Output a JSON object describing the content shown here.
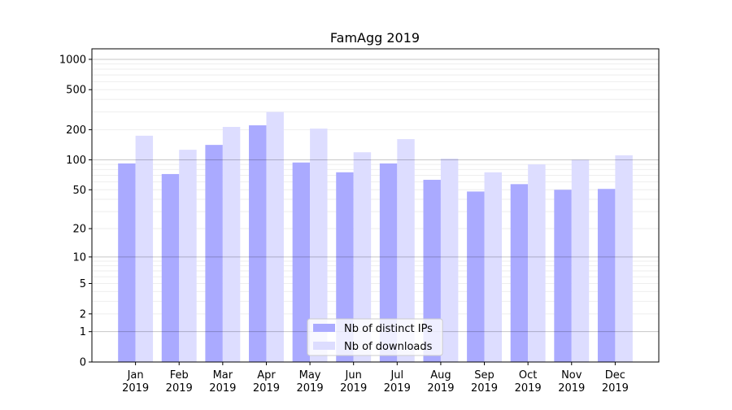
{
  "chart_data": {
    "type": "bar",
    "title": "FamAgg 2019",
    "xlabel": "",
    "ylabel": "",
    "yscale": "log(1+y)",
    "ylim": [
      0,
      1270
    ],
    "grid": "horizontal, major and minor",
    "legend_placement": "lower center",
    "categories": [
      "Jan\n2019",
      "Feb\n2019",
      "Mar\n2019",
      "Apr\n2019",
      "May\n2019",
      "Jun\n2019",
      "Jul\n2019",
      "Aug\n2019",
      "Sep\n2019",
      "Oct\n2019",
      "Nov\n2019",
      "Dec\n2019"
    ],
    "yticks": [
      0,
      1,
      2,
      5,
      10,
      20,
      50,
      100,
      200,
      500,
      1000
    ],
    "ytick_labels": [
      "0",
      "1",
      "2",
      "5",
      "10",
      "20",
      "50",
      "100",
      "200",
      "500",
      "1000"
    ],
    "series": [
      {
        "name": "Nb of distinct IPs",
        "color": "#aaaaff",
        "values": [
          92,
          72,
          141,
          221,
          94,
          75,
          92,
          63,
          48,
          57,
          50,
          51
        ]
      },
      {
        "name": "Nb of downloads",
        "color": "#ddddff",
        "values": [
          174,
          126,
          213,
          300,
          205,
          119,
          161,
          103,
          75,
          90,
          100,
          111
        ]
      }
    ]
  }
}
